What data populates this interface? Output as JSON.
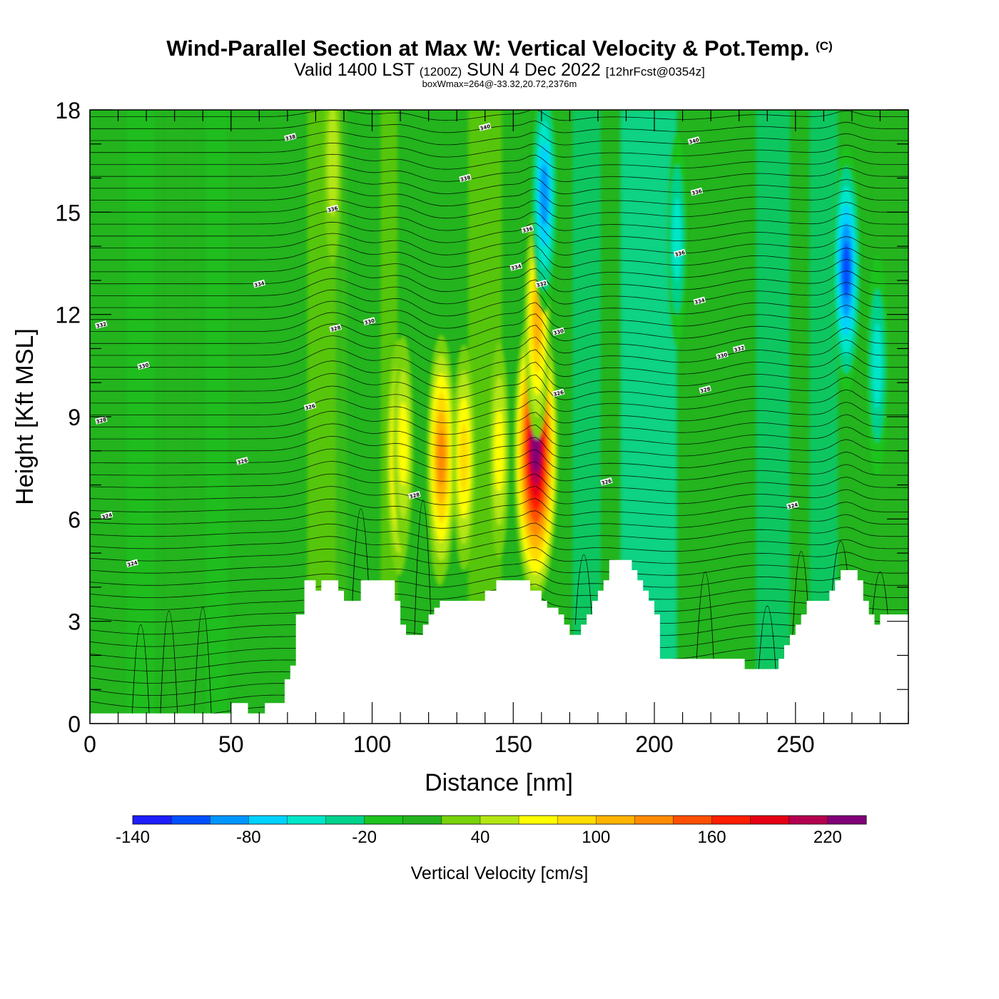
{
  "title": {
    "main": "Wind-Parallel Section at Max W: Vertical Velocity & Pot.Temp.",
    "copyright": "(C)",
    "valid_prefix": "Valid 1400 LST",
    "valid_utc": "(1200Z)",
    "valid_date": "SUN 4 Dec 2022",
    "forecast": "[12hrFcst@0354z]",
    "box_info": "boxWmax=264@-33.32,20.72,2376m"
  },
  "chart_data": {
    "type": "heatmap",
    "xlabel": "Distance [nm]",
    "ylabel": "Height [Kft MSL]",
    "xlim": [
      0,
      290
    ],
    "ylim": [
      0,
      18
    ],
    "xticks": [
      0,
      50,
      100,
      150,
      200,
      250
    ],
    "yticks": [
      0,
      3,
      6,
      9,
      12,
      15,
      18
    ],
    "colorbar": {
      "title": "Vertical Velocity [cm/s]",
      "min": -140,
      "step": 20,
      "labels": [
        -140,
        -80,
        -20,
        40,
        100,
        160,
        220
      ],
      "colors": [
        "#1e1eff",
        "#0050ff",
        "#0096ff",
        "#00d2ff",
        "#00e6c8",
        "#00d28c",
        "#1ec31e",
        "#23b41e",
        "#78d20a",
        "#b4e614",
        "#ffff00",
        "#ffdc00",
        "#ffb400",
        "#ff8c00",
        "#ff5000",
        "#ff1e00",
        "#e60014",
        "#b40050",
        "#820078"
      ]
    },
    "terrain": [
      [
        0,
        0.3
      ],
      [
        50,
        0.3
      ],
      [
        50,
        0.6
      ],
      [
        56,
        0.6
      ],
      [
        56,
        0.3
      ],
      [
        62,
        0.3
      ],
      [
        62,
        0.6
      ],
      [
        69,
        0.6
      ],
      [
        69,
        1.3
      ],
      [
        71,
        1.3
      ],
      [
        71,
        1.7
      ],
      [
        73,
        1.7
      ],
      [
        73,
        3.2
      ],
      [
        76,
        3.2
      ],
      [
        76,
        4.2
      ],
      [
        80,
        4.2
      ],
      [
        80,
        3.9
      ],
      [
        82,
        3.9
      ],
      [
        82,
        4.2
      ],
      [
        88,
        4.2
      ],
      [
        88,
        3.9
      ],
      [
        90,
        3.9
      ],
      [
        90,
        3.6
      ],
      [
        96,
        3.6
      ],
      [
        96,
        4.2
      ],
      [
        108,
        4.2
      ],
      [
        108,
        3.6
      ],
      [
        110,
        3.6
      ],
      [
        110,
        2.9
      ],
      [
        112,
        2.9
      ],
      [
        112,
        2.6
      ],
      [
        118,
        2.6
      ],
      [
        118,
        2.9
      ],
      [
        120,
        2.9
      ],
      [
        120,
        3.2
      ],
      [
        122,
        3.2
      ],
      [
        122,
        3.4
      ],
      [
        124,
        3.4
      ],
      [
        124,
        3.6
      ],
      [
        140,
        3.6
      ],
      [
        140,
        3.9
      ],
      [
        144,
        3.9
      ],
      [
        144,
        4.2
      ],
      [
        156,
        4.2
      ],
      [
        156,
        3.9
      ],
      [
        160,
        3.9
      ],
      [
        160,
        3.6
      ],
      [
        162,
        3.6
      ],
      [
        162,
        3.4
      ],
      [
        166,
        3.4
      ],
      [
        166,
        3.2
      ],
      [
        168,
        3.2
      ],
      [
        168,
        2.9
      ],
      [
        170,
        2.9
      ],
      [
        170,
        2.6
      ],
      [
        174,
        2.6
      ],
      [
        174,
        2.9
      ],
      [
        176,
        2.9
      ],
      [
        176,
        3.2
      ],
      [
        178,
        3.2
      ],
      [
        178,
        3.6
      ],
      [
        180,
        3.6
      ],
      [
        180,
        3.9
      ],
      [
        182,
        3.9
      ],
      [
        182,
        4.2
      ],
      [
        184,
        4.2
      ],
      [
        184,
        4.8
      ],
      [
        192,
        4.8
      ],
      [
        192,
        4.5
      ],
      [
        194,
        4.5
      ],
      [
        194,
        4.2
      ],
      [
        196,
        4.2
      ],
      [
        196,
        3.9
      ],
      [
        198,
        3.9
      ],
      [
        198,
        3.6
      ],
      [
        200,
        3.6
      ],
      [
        200,
        3.2
      ],
      [
        202,
        3.2
      ],
      [
        202,
        1.9
      ],
      [
        232,
        1.9
      ],
      [
        232,
        1.6
      ],
      [
        244,
        1.6
      ],
      [
        244,
        1.9
      ],
      [
        246,
        1.9
      ],
      [
        246,
        2.3
      ],
      [
        248,
        2.3
      ],
      [
        248,
        2.6
      ],
      [
        250,
        2.6
      ],
      [
        250,
        2.9
      ],
      [
        252,
        2.9
      ],
      [
        252,
        3.2
      ],
      [
        254,
        3.2
      ],
      [
        254,
        3.6
      ],
      [
        262,
        3.6
      ],
      [
        262,
        3.9
      ],
      [
        264,
        3.9
      ],
      [
        264,
        4.2
      ],
      [
        266,
        4.2
      ],
      [
        266,
        4.5
      ],
      [
        272,
        4.5
      ],
      [
        272,
        4.2
      ],
      [
        274,
        4.2
      ],
      [
        274,
        3.6
      ],
      [
        276,
        3.6
      ],
      [
        276,
        3.2
      ],
      [
        278,
        3.2
      ],
      [
        278,
        2.9
      ],
      [
        280,
        2.9
      ],
      [
        280,
        3.2
      ],
      [
        290,
        3.2
      ]
    ],
    "w_features": [
      {
        "x": 109.5,
        "y": 7.8,
        "w_cm_s": 100
      },
      {
        "x": 111,
        "y": 8.2,
        "w_cm_s": 60
      },
      {
        "x": 124,
        "y": 7.5,
        "w_cm_s": 100
      },
      {
        "x": 124.5,
        "y": 7.8,
        "w_cm_s": 120
      },
      {
        "x": 132.5,
        "y": 7.8,
        "w_cm_s": 80
      },
      {
        "x": 145,
        "y": 8.0,
        "w_cm_s": 60
      },
      {
        "x": 158,
        "y": 8.0,
        "w_cm_s": 230
      },
      {
        "x": 158.5,
        "y": 11.8,
        "w_cm_s": 100
      },
      {
        "x": 161,
        "y": 15.5,
        "w_cm_s": -100
      },
      {
        "x": 268,
        "y": 13.3,
        "w_cm_s": -120
      },
      {
        "x": 279,
        "y": 10.5,
        "w_cm_s": -70
      },
      {
        "x": 208,
        "y": 14.2,
        "w_cm_s": -60
      },
      {
        "x": 86,
        "y": 16.5,
        "w_cm_s": 40
      }
    ],
    "contour_labels": [
      {
        "x": 71,
        "y": 17.2,
        "text": "338"
      },
      {
        "x": 140,
        "y": 17.5,
        "text": "340"
      },
      {
        "x": 214,
        "y": 17.1,
        "text": "340"
      },
      {
        "x": 133,
        "y": 16.0,
        "text": "338"
      },
      {
        "x": 215,
        "y": 15.6,
        "text": "336"
      },
      {
        "x": 86,
        "y": 15.1,
        "text": "336"
      },
      {
        "x": 155,
        "y": 14.5,
        "text": "336"
      },
      {
        "x": 209,
        "y": 13.8,
        "text": "336"
      },
      {
        "x": 151,
        "y": 13.4,
        "text": "334"
      },
      {
        "x": 60,
        "y": 12.9,
        "text": "334"
      },
      {
        "x": 160,
        "y": 12.9,
        "text": "332"
      },
      {
        "x": 216,
        "y": 12.4,
        "text": "334"
      },
      {
        "x": 4,
        "y": 11.7,
        "text": "332"
      },
      {
        "x": 87,
        "y": 11.6,
        "text": "328"
      },
      {
        "x": 99,
        "y": 11.8,
        "text": "330"
      },
      {
        "x": 166,
        "y": 11.5,
        "text": "330"
      },
      {
        "x": 230,
        "y": 11.0,
        "text": "332"
      },
      {
        "x": 224,
        "y": 10.8,
        "text": "330"
      },
      {
        "x": 19,
        "y": 10.5,
        "text": "330"
      },
      {
        "x": 218,
        "y": 9.8,
        "text": "328"
      },
      {
        "x": 166,
        "y": 9.7,
        "text": "326"
      },
      {
        "x": 78,
        "y": 9.3,
        "text": "326"
      },
      {
        "x": 4,
        "y": 8.9,
        "text": "328"
      },
      {
        "x": 54,
        "y": 7.7,
        "text": "326"
      },
      {
        "x": 183,
        "y": 7.1,
        "text": "326"
      },
      {
        "x": 115,
        "y": 6.7,
        "text": "328"
      },
      {
        "x": 249,
        "y": 6.4,
        "text": "324"
      },
      {
        "x": 6,
        "y": 6.1,
        "text": "324"
      },
      {
        "x": 15,
        "y": 4.7,
        "text": "324"
      }
    ]
  }
}
